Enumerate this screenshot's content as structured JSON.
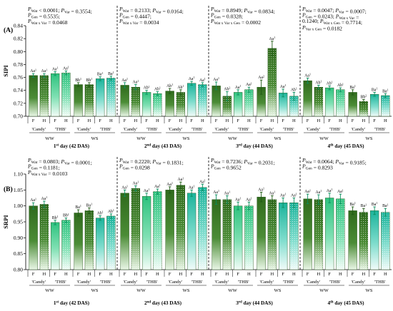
{
  "chart_data": [
    {
      "type": "bar",
      "panel_label": "(A)",
      "ylabel": "SIPI",
      "ylim": [
        0.7,
        0.84
      ],
      "yticks": [
        0.7,
        0.72,
        0.74,
        0.76,
        0.78,
        0.8,
        0.82,
        0.84
      ],
      "bar_labels": [
        "F",
        "H",
        "F",
        "H",
        "F",
        "H",
        "F",
        "H"
      ],
      "genotype_labels": [
        "'Candy'",
        "'THB'",
        "'Candy'",
        "'THB'"
      ],
      "treatment_labels": [
        "WW",
        "WS"
      ],
      "groups": [
        {
          "day_label": "1st day (42 DAS)",
          "stats": [
            "P_Wat < 0.0001; P_Var = 0.3554;",
            "P_Gen = 0.5535;",
            "P_Wat x Var = 0.0468"
          ],
          "values": [
            0.763,
            0.763,
            0.766,
            0.767,
            0.749,
            0.749,
            0.758,
            0.759
          ],
          "errors": [
            0.003,
            0.003,
            0.003,
            0.003,
            0.003,
            0.003,
            0.003,
            0.003
          ],
          "letters": [
            "Aa1",
            "Aa1",
            "Aa1",
            "Aa1",
            "Bb1",
            "Bb1",
            "Ba1",
            "Ba1"
          ]
        },
        {
          "day_label": "2nd day (43 DAS)",
          "stats": [
            "P_Wat = 0.2133; P_Var = 0.0164;",
            "P_Gen = 0.4447;",
            "P_Wat x Var = 0.0034"
          ],
          "values": [
            0.748,
            0.745,
            0.737,
            0.735,
            0.739,
            0.737,
            0.751,
            0.749
          ],
          "errors": [
            0.004,
            0.004,
            0.003,
            0.003,
            0.004,
            0.004,
            0.003,
            0.003
          ],
          "letters": [
            "Aa1",
            "Aa1",
            "Ab1",
            "Ab1",
            "Ab1",
            "Ab1",
            "Aa1",
            "Aa1"
          ]
        },
        {
          "day_label": "3rd day (44 DAS)",
          "stats": [
            "P_Wat = 0.8949; P_Var = 0.0834;",
            "P_Gen = 0.0328;",
            "P_Wat x Var x Gen = 0.0002"
          ],
          "values": [
            0.747,
            0.731,
            0.737,
            0.741,
            0.745,
            0.805,
            0.736,
            0.731
          ],
          "errors": [
            0.006,
            0.007,
            0.004,
            0.004,
            0.011,
            0.011,
            0.006,
            0.006
          ],
          "letters": [
            "Aa1",
            "Ab2",
            "Aa1",
            "Aa1",
            "Aa2",
            "Aa1",
            "Aa1",
            "Ab1"
          ]
        },
        {
          "day_label": "4th day (45 DAS)",
          "stats": [
            "P_Wat = 0.0047; P_Var = 0.0007;",
            "P_Gen = 0.0243; P_Wat x Var =",
            "0.1240; P_Wat x Gen = 0.7714;",
            "P_Var x Gen = 0.0182"
          ],
          "values": [
            0.755,
            0.745,
            0.744,
            0.741,
            0.737,
            0.723,
            0.734,
            0.732
          ],
          "errors": [
            0.004,
            0.003,
            0.003,
            0.003,
            0.004,
            0.003,
            0.003,
            0.003
          ],
          "letters": [
            "Aa1",
            "Ab1",
            "Ab1",
            "Ab1",
            "Ba1",
            "Bb2",
            "Ba1",
            "Ba1"
          ]
        }
      ]
    },
    {
      "type": "bar",
      "panel_label": "(B)",
      "ylabel": "SRPI",
      "ylim": [
        0.8,
        1.1
      ],
      "yticks": [
        0.8,
        0.85,
        0.9,
        0.95,
        1.0,
        1.05,
        1.1
      ],
      "bar_labels": [
        "F",
        "H",
        "F",
        "H",
        "F",
        "H",
        "F",
        "H"
      ],
      "genotype_labels": [
        "'Candy'",
        "'THB'",
        "'Candy'",
        "'THB'"
      ],
      "treatment_labels": [
        "WW",
        "WS"
      ],
      "groups": [
        {
          "day_label": "1st day (42 DAS)",
          "stats": [
            "P_Wat = 0.0803; P_Var = 0.0001;",
            "P_Gen = 0.1181;",
            "P_Wat x Var = 0.0103"
          ],
          "values": [
            1.0,
            1.005,
            0.948,
            0.955,
            0.978,
            0.985,
            0.962,
            0.968
          ],
          "errors": [
            0.01,
            0.01,
            0.007,
            0.007,
            0.01,
            0.009,
            0.007,
            0.007
          ],
          "letters": [
            "Aa1",
            "Aa1",
            "Bb1",
            "Bb1",
            "Ba1",
            "Ba1",
            "Ab1",
            "Ab1"
          ]
        },
        {
          "day_label": "2nd day (43 DAS)",
          "stats": [
            "P_Wat = 0.2220; P_Var = 0.1831;",
            "P_Gen = 0.0298"
          ],
          "values": [
            1.04,
            1.055,
            1.03,
            1.045,
            1.05,
            1.065,
            1.04,
            1.058
          ],
          "errors": [
            0.01,
            0.008,
            0.01,
            0.008,
            0.01,
            0.01,
            0.01,
            0.01
          ],
          "letters": [
            "Aa1",
            "Aa1",
            "Aa1",
            "Aa1",
            "Aa1",
            "Aa1",
            "Aa1",
            "Aa1"
          ]
        },
        {
          "day_label": "3rd day (44 DAS)",
          "stats": [
            "P_Wat = 0.7236; P_Var = 0.2031;",
            "P_Gen = 0.9652"
          ],
          "values": [
            1.02,
            1.02,
            1.0,
            1.0,
            1.028,
            1.02,
            1.01,
            1.01
          ],
          "errors": [
            0.015,
            0.012,
            0.012,
            0.012,
            0.015,
            0.012,
            0.015,
            0.015
          ],
          "letters": [
            "Aa1",
            "Aa1",
            "Aa1",
            "Aa1",
            "Aa1",
            "Aa1",
            "Aa1",
            "Aa1"
          ]
        },
        {
          "day_label": "4th day (45 DAS)",
          "stats": [
            "P_Wat = 0.0064; P_Var = 0.9185;",
            "P_Gen = 0.8293"
          ],
          "values": [
            1.022,
            1.02,
            1.025,
            1.022,
            0.985,
            0.98,
            0.985,
            0.98
          ],
          "errors": [
            0.015,
            0.015,
            0.015,
            0.015,
            0.012,
            0.012,
            0.012,
            0.012
          ],
          "letters": [
            "Aa1",
            "Aa1",
            "Aa1",
            "Aa1",
            "Ba1",
            "Ba1",
            "Ba1",
            "Ba1"
          ]
        }
      ]
    }
  ]
}
